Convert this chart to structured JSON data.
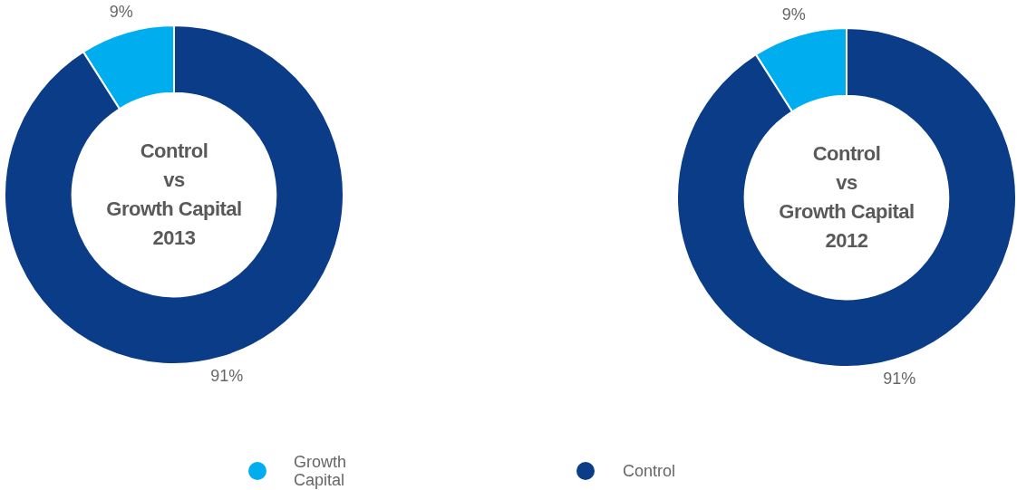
{
  "chart_data": [
    {
      "type": "donut",
      "title": "Control\nvs\nGrowth Capital\n2013",
      "categories": [
        "Growth Capital",
        "Control"
      ],
      "values": [
        9,
        91
      ],
      "colors": [
        "#00aeef",
        "#0b3c87"
      ],
      "value_labels": [
        "9%",
        "91%"
      ],
      "legend": "bottom"
    },
    {
      "type": "donut",
      "title": "Control\nvs\nGrowth Capital\n2012",
      "categories": [
        null,
        null
      ],
      "values": [
        9,
        91
      ],
      "colors": [
        "#00aeef",
        "#0b3c87"
      ],
      "value_labels": [
        "9%",
        "91%"
      ]
    }
  ]
}
